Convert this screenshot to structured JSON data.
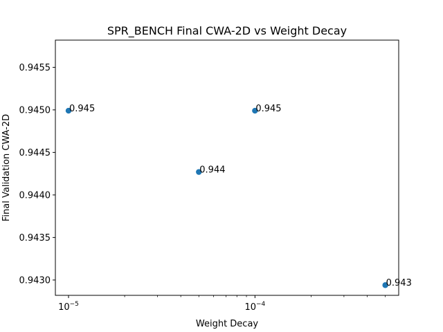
{
  "chart_data": {
    "type": "scatter",
    "title": "SPR_BENCH Final CWA-2D vs Weight Decay",
    "xlabel": "Weight Decay",
    "ylabel": "Final Validation CWA-2D",
    "xscale": "log",
    "xlim": [
      8.5e-06,
      0.00059
    ],
    "ylim": [
      0.94282,
      0.94582
    ],
    "x_major_ticks": [
      {
        "value": 1e-05,
        "base": "10",
        "exponent": "−5"
      },
      {
        "value": 0.0001,
        "base": "10",
        "exponent": "−4"
      }
    ],
    "x_minor_ticks": [
      2e-05,
      3e-05,
      4e-05,
      5e-05,
      6e-05,
      7e-05,
      8e-05,
      9e-05,
      0.0002,
      0.0003,
      0.0004,
      0.0005
    ],
    "y_ticks": [
      {
        "value": 0.943,
        "label": "0.9430"
      },
      {
        "value": 0.9435,
        "label": "0.9435"
      },
      {
        "value": 0.944,
        "label": "0.9440"
      },
      {
        "value": 0.9445,
        "label": "0.9445"
      },
      {
        "value": 0.945,
        "label": "0.9450"
      },
      {
        "value": 0.9455,
        "label": "0.9455"
      }
    ],
    "points": [
      {
        "x": 1e-05,
        "y": 0.94499,
        "label": "0.945"
      },
      {
        "x": 5e-05,
        "y": 0.94427,
        "label": "0.944"
      },
      {
        "x": 0.0001,
        "y": 0.94499,
        "label": "0.945"
      },
      {
        "x": 0.0005,
        "y": 0.94294,
        "label": "0.943"
      }
    ],
    "marker_color": "#1f77b4",
    "grid": false
  }
}
